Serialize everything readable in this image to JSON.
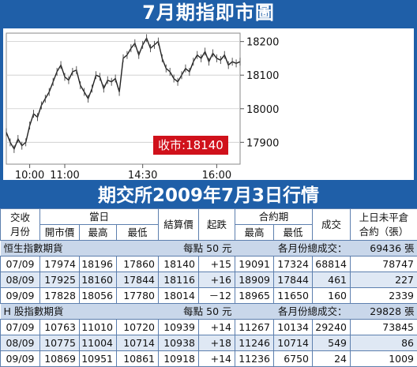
{
  "title": "7月期指即市圖",
  "chart_data": {
    "type": "line",
    "x_ticks": [
      "10:00",
      "11:00",
      "14:30",
      "16:00"
    ],
    "y_ticks": [
      17900,
      18000,
      18100,
      18200
    ],
    "ylim": [
      17835,
      18225
    ],
    "close_label": "收市:",
    "close_value": "18140",
    "series": [
      {
        "x": [
          0,
          2,
          4,
          6,
          8,
          10,
          12,
          14,
          16,
          18,
          20,
          22,
          24,
          26,
          28,
          30,
          32,
          34,
          36,
          38,
          40,
          42,
          44,
          46,
          48,
          50,
          52,
          54,
          56,
          58,
          60,
          62,
          64,
          66,
          68,
          70,
          72,
          74,
          76,
          78,
          80,
          82,
          84,
          86,
          88,
          90,
          92,
          94,
          96,
          98,
          100,
          102,
          104,
          106,
          108,
          110,
          112,
          114,
          116,
          118,
          120
        ],
        "y": [
          17930,
          17900,
          17880,
          17910,
          17890,
          17900,
          17950,
          17985,
          17975,
          18010,
          18030,
          18050,
          18080,
          18110,
          18130,
          18095,
          18085,
          18110,
          18115,
          18070,
          18050,
          18030,
          18060,
          18100,
          18095,
          18060,
          18085,
          18080,
          18090,
          18050,
          18150,
          18160,
          18180,
          18195,
          18160,
          18190,
          18210,
          18180,
          18190,
          18200,
          18150,
          18120,
          18110,
          18090,
          18080,
          18100,
          18120,
          18110,
          18140,
          18160,
          18150,
          18170,
          18140,
          18165,
          18150,
          18145,
          18160,
          18130,
          18140,
          18135,
          18140
        ]
      }
    ]
  },
  "title2": "期交所2009年7月3日行情",
  "header": {
    "jiaoshou": "交收",
    "yuefen": "月份",
    "dangri": "當日",
    "kaishi": "開市價",
    "zuigao": "最高",
    "zuidi": "最低",
    "jiesuan": "結算價",
    "qidie": "起跌",
    "heyueqi": "合約期",
    "hy_zuigao": "最高",
    "hy_zuidi": "最低",
    "chengjiao": "成交",
    "weiping1": "上日未平倉",
    "weiping2": "合約（張）"
  },
  "sections": [
    {
      "name": "恒生指數期貨",
      "point": "每點 50 元",
      "total_label": "各月份總成交：",
      "total": "69436 張",
      "rows": [
        [
          "07/09",
          "17974",
          "18196",
          "17860",
          "18140",
          "+15",
          "19091",
          "17324",
          "68814",
          "78747"
        ],
        [
          "08/09",
          "17925",
          "18160",
          "17844",
          "18116",
          "+16",
          "18909",
          "17844",
          "461",
          "227"
        ],
        [
          "09/09",
          "17828",
          "18056",
          "17780",
          "18014",
          "－12",
          "18965",
          "11650",
          "160",
          "2339"
        ]
      ]
    },
    {
      "name": "H 股指數期貨",
      "point": "每點 50 元",
      "total_label": "各月份總成交：",
      "total": "29828 張",
      "rows": [
        [
          "07/09",
          "10763",
          "11010",
          "10720",
          "10939",
          "+14",
          "11267",
          "10134",
          "29240",
          "73845"
        ],
        [
          "08/09",
          "10775",
          "11004",
          "10714",
          "10938",
          "+18",
          "11246",
          "10714",
          "549",
          "86"
        ],
        [
          "09/09",
          "10869",
          "10951",
          "10861",
          "10918",
          "+14",
          "11236",
          "6750",
          "24",
          "1009"
        ]
      ]
    }
  ]
}
